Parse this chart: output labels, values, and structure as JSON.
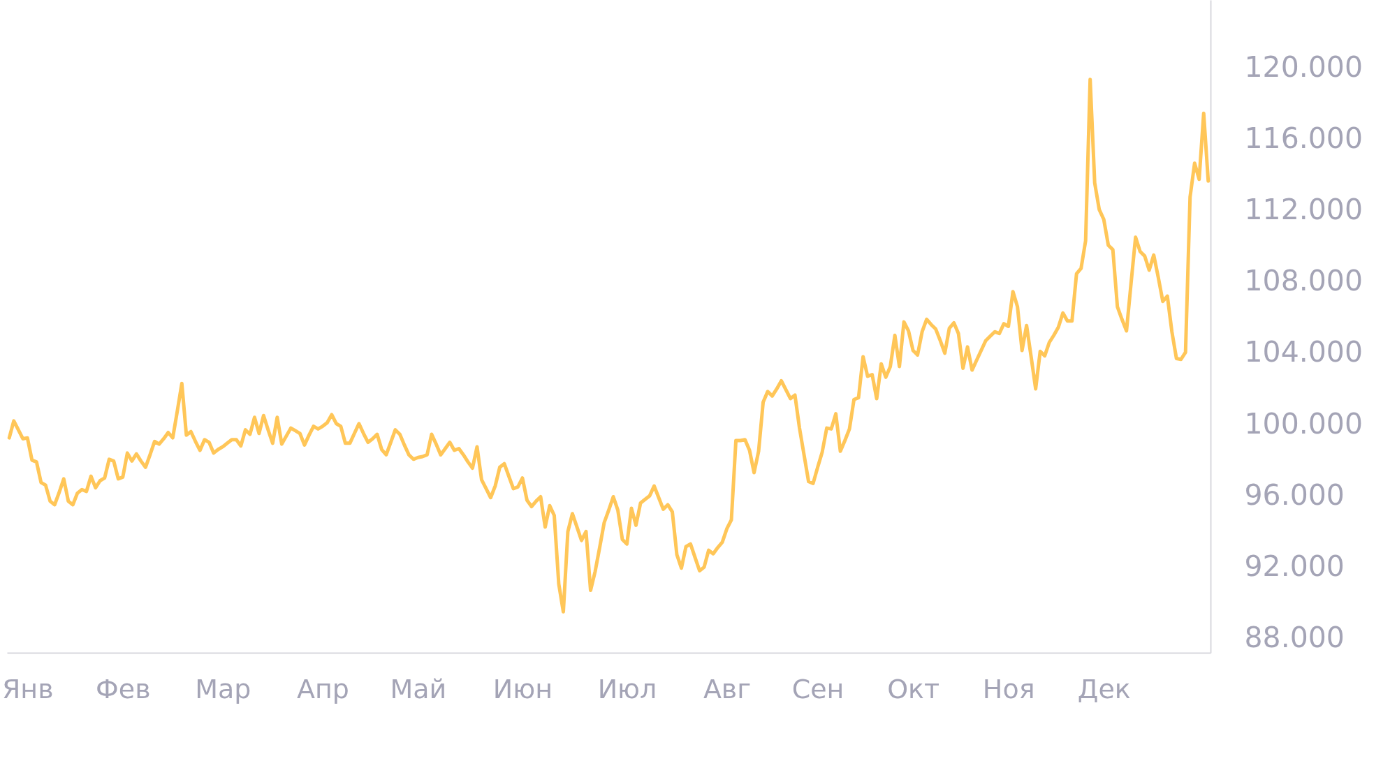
{
  "chart_data": {
    "type": "line",
    "categories": [
      null,
      null,
      null,
      null,
      "Янв",
      null,
      null,
      null,
      null,
      null,
      null,
      null,
      null,
      null,
      null,
      null,
      null,
      null,
      null,
      null,
      null,
      null,
      null,
      null,
      null,
      "Фев",
      null,
      null,
      null,
      null,
      null,
      null,
      null,
      null,
      null,
      null,
      null,
      null,
      null,
      null,
      null,
      null,
      null,
      null,
      null,
      null,
      null,
      "Мар",
      null,
      null,
      null,
      null,
      null,
      null,
      null,
      null,
      null,
      null,
      null,
      null,
      null,
      null,
      null,
      null,
      null,
      null,
      null,
      null,
      null,
      "Апр",
      null,
      null,
      null,
      null,
      null,
      null,
      null,
      null,
      null,
      null,
      null,
      null,
      null,
      null,
      null,
      null,
      null,
      null,
      null,
      null,
      "Май",
      null,
      null,
      null,
      null,
      null,
      null,
      null,
      null,
      null,
      null,
      null,
      null,
      null,
      null,
      null,
      null,
      null,
      null,
      null,
      null,
      null,
      null,
      "Июн",
      null,
      null,
      null,
      null,
      null,
      null,
      null,
      null,
      null,
      null,
      null,
      null,
      null,
      null,
      null,
      null,
      null,
      null,
      null,
      null,
      null,
      null,
      "Июл",
      null,
      null,
      null,
      null,
      null,
      null,
      null,
      null,
      null,
      null,
      null,
      null,
      null,
      null,
      null,
      null,
      null,
      null,
      null,
      null,
      null,
      "Авг",
      null,
      null,
      null,
      null,
      null,
      null,
      null,
      null,
      null,
      null,
      null,
      null,
      null,
      null,
      null,
      null,
      null,
      null,
      null,
      "Сен",
      null,
      null,
      null,
      null,
      null,
      null,
      null,
      null,
      null,
      null,
      null,
      null,
      null,
      null,
      null,
      null,
      null,
      null,
      null,
      null,
      "Окт",
      null,
      null,
      null,
      null,
      null,
      null,
      null,
      null,
      null,
      null,
      null,
      null,
      null,
      null,
      null,
      null,
      null,
      null,
      null,
      null,
      "Ноя",
      null,
      null,
      null,
      null,
      null,
      null,
      null,
      null,
      null,
      null,
      null,
      null,
      null,
      null,
      null,
      null,
      null,
      null,
      null,
      null,
      "Дек",
      null,
      null,
      null,
      null,
      null,
      null,
      null,
      null,
      null,
      null,
      null,
      null,
      null,
      null,
      null,
      null,
      null,
      null,
      null,
      null,
      null,
      null,
      null
    ],
    "series": [
      {
        "color": "#ffc658",
        "values": [
          99250,
          100200,
          99700,
          99200,
          99250,
          98000,
          97900,
          96750,
          96600,
          95700,
          95500,
          96200,
          96950,
          95700,
          95500,
          96150,
          96350,
          96250,
          97100,
          96450,
          96850,
          97000,
          98050,
          97950,
          96950,
          97050,
          98400,
          97950,
          98350,
          97950,
          97600,
          98300,
          99050,
          98900,
          99200,
          99550,
          99250,
          100750,
          102300,
          99400,
          99600,
          99050,
          98550,
          99150,
          99000,
          98400,
          98600,
          98750,
          98950,
          99150,
          99150,
          98800,
          99700,
          99450,
          100400,
          99500,
          100500,
          99700,
          98950,
          100400,
          98900,
          99350,
          99800,
          99650,
          99500,
          98850,
          99400,
          99900,
          99750,
          99900,
          100100,
          100550,
          100050,
          99900,
          98950,
          98950,
          99500,
          100050,
          99500,
          99000,
          99200,
          99450,
          98600,
          98300,
          99000,
          99700,
          99450,
          98850,
          98300,
          98050,
          98150,
          98200,
          98300,
          99450,
          98900,
          98300,
          98650,
          99000,
          98550,
          98650,
          98300,
          97900,
          97550,
          98750,
          96900,
          96400,
          95900,
          96550,
          97600,
          97800,
          97100,
          96400,
          96500,
          97000,
          95750,
          95400,
          95700,
          95950,
          94250,
          95450,
          94900,
          91050,
          89500,
          94000,
          95000,
          94250,
          93500,
          94000,
          90700,
          91750,
          93100,
          94500,
          95200,
          95950,
          95200,
          93550,
          93300,
          95300,
          94350,
          95600,
          95800,
          96000,
          96550,
          95900,
          95250,
          95500,
          95100,
          92700,
          91950,
          93150,
          93300,
          92550,
          91800,
          92000,
          92950,
          92750,
          93100,
          93400,
          94150,
          94650,
          99100,
          99100,
          99150,
          98550,
          97300,
          98500,
          101250,
          101850,
          101600,
          102000,
          102450,
          101950,
          101450,
          101650,
          99800,
          98300,
          96800,
          96700,
          97600,
          98450,
          99800,
          99750,
          100600,
          98500,
          99100,
          99750,
          101400,
          101500,
          103800,
          102700,
          102800,
          101450,
          103400,
          102650,
          103250,
          105000,
          103250,
          105750,
          105250,
          104150,
          103900,
          105200,
          105900,
          105600,
          105350,
          104700,
          104000,
          105400,
          105700,
          105100,
          103150,
          104350,
          103050,
          103600,
          104150,
          104700,
          104950,
          105200,
          105100,
          105650,
          105500,
          107450,
          106600,
          104150,
          105550,
          103800,
          102000,
          104100,
          103850,
          104600,
          105000,
          105450,
          106250,
          105800,
          105800,
          108450,
          108750,
          110300,
          119350,
          113550,
          112050,
          111500,
          110050,
          109800,
          106600,
          105900,
          105250,
          107900,
          110500,
          109700,
          109450,
          108650,
          109500,
          108250,
          106900,
          107200,
          105200,
          103700,
          103650,
          104050,
          112750,
          114650,
          113750,
          117450,
          113650
        ]
      }
    ],
    "ylim": [
      87200,
      123800
    ],
    "yticks": [
      {
        "value": 88000,
        "label": "88.000"
      },
      {
        "value": 92000,
        "label": "92.000"
      },
      {
        "value": 96000,
        "label": "96.000"
      },
      {
        "value": 100000,
        "label": "100.000"
      },
      {
        "value": 104000,
        "label": "104.000"
      },
      {
        "value": 108000,
        "label": "108.000"
      },
      {
        "value": 112000,
        "label": "112.000"
      },
      {
        "value": 116000,
        "label": "116.000"
      },
      {
        "value": 120000,
        "label": "120.000"
      }
    ]
  }
}
